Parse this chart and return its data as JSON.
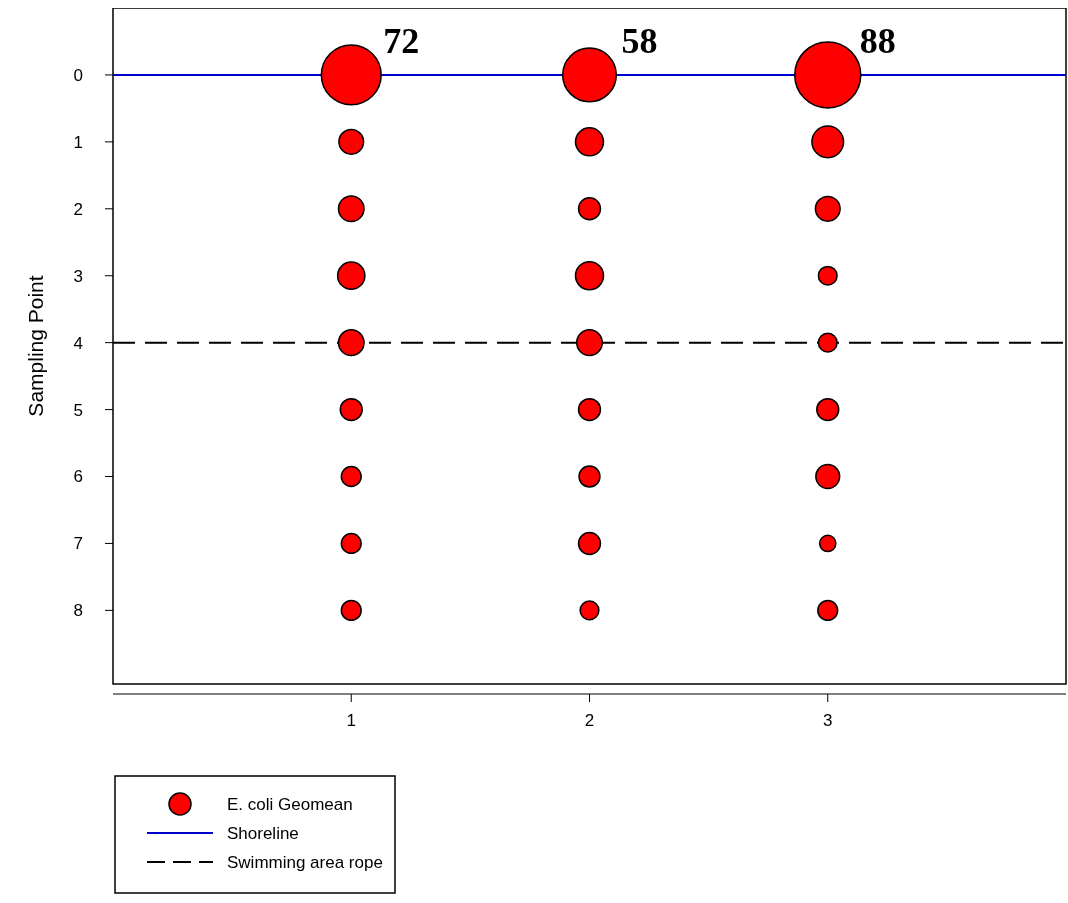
{
  "chart_data": {
    "type": "bubble",
    "ylabel": "Sampling Point",
    "xlim": [
      0,
      4
    ],
    "xticks": [
      1,
      2,
      3
    ],
    "ylim": [
      9.1,
      -1
    ],
    "yticks": [
      0,
      1,
      2,
      3,
      4,
      5,
      6,
      7,
      8
    ],
    "series": [
      {
        "name": "E. coli Geomean",
        "color": "#ff0000",
        "x": [
          1,
          1,
          1,
          1,
          1,
          1,
          1,
          1,
          1,
          2,
          2,
          2,
          2,
          2,
          2,
          2,
          2,
          2,
          3,
          3,
          3,
          3,
          3,
          3,
          3,
          3,
          3
        ],
        "values": [
          0,
          1,
          2,
          3,
          4,
          5,
          6,
          7,
          8,
          0,
          1,
          2,
          3,
          4,
          5,
          6,
          7,
          8,
          0,
          1,
          2,
          3,
          4,
          5,
          6,
          7,
          8
        ],
        "sizes": [
          0.82,
          0.14,
          0.15,
          0.17,
          0.15,
          0.11,
          0.09,
          0.09,
          0.09,
          0.66,
          0.18,
          0.11,
          0.18,
          0.15,
          0.11,
          0.1,
          0.11,
          0.08,
          1,
          0.23,
          0.14,
          0.08,
          0.08,
          0.11,
          0.13,
          0.06,
          0.09
        ]
      }
    ],
    "ref_lines": [
      {
        "axis": "y",
        "value": 0,
        "label": "Shoreline",
        "color": "#0000cc",
        "line_style": "solid"
      },
      {
        "axis": "y",
        "value": 4,
        "label": "Swimming area rope",
        "color": "#000000",
        "line_style": "dashed"
      }
    ],
    "annotations": [
      {
        "text": "72",
        "x": 1,
        "y": 0
      },
      {
        "text": "58",
        "x": 2,
        "y": 0
      },
      {
        "text": "88",
        "x": 3,
        "y": 0
      }
    ],
    "legend": "bottom left",
    "marker": "circle"
  }
}
